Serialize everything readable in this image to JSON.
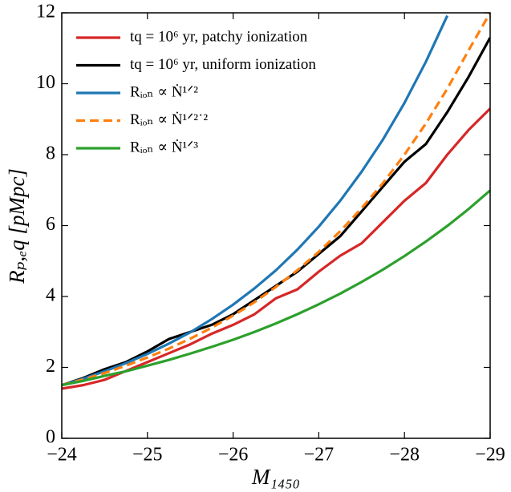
{
  "chart_data": {
    "type": "line",
    "x_label": "M₁₄₅₀",
    "y_label": "Rₚ,ₑq [pMpc]",
    "x": [
      -24,
      -24.25,
      -24.5,
      -24.75,
      -25,
      -25.25,
      -25.5,
      -25.75,
      -26,
      -26.25,
      -26.5,
      -26.75,
      -27,
      -27.25,
      -27.5,
      -27.75,
      -28,
      -28.25,
      -28.5,
      -28.75,
      -29
    ],
    "series": [
      {
        "name": "tq = 10⁶ yr, patchy ionization",
        "color": "#d62728",
        "dash": false,
        "values": [
          1.4,
          1.5,
          1.65,
          1.9,
          2.15,
          2.4,
          2.65,
          2.95,
          3.2,
          3.5,
          3.95,
          4.2,
          4.7,
          5.15,
          5.5,
          6.1,
          6.7,
          7.2,
          8.0,
          8.7,
          9.3
        ]
      },
      {
        "name": "tq = 10⁶ yr, uniform ionization",
        "color": "#000000",
        "dash": false,
        "values": [
          1.5,
          1.7,
          1.95,
          2.15,
          2.45,
          2.8,
          3.0,
          3.2,
          3.5,
          3.9,
          4.3,
          4.7,
          5.2,
          5.7,
          6.4,
          7.1,
          7.8,
          8.3,
          9.2,
          10.2,
          11.3
        ]
      },
      {
        "name": "Rᵢₒₙ ∝ Ṅ¹ᐟ²",
        "color": "#1f77b4",
        "dash": false,
        "values": [
          1.5,
          1.68,
          1.89,
          2.12,
          2.38,
          2.67,
          2.99,
          3.36,
          3.77,
          4.23,
          4.74,
          5.32,
          5.97,
          6.7,
          7.52,
          8.43,
          9.46,
          10.62,
          11.92,
          null,
          null
        ]
      },
      {
        "name": "Rᵢₒₙ ∝ Ṅ¹ᐟ²˙²",
        "color": "#ff7f0e",
        "dash": true,
        "values": [
          1.5,
          1.66,
          1.84,
          2.05,
          2.28,
          2.53,
          2.81,
          3.12,
          3.46,
          3.84,
          4.27,
          4.74,
          5.26,
          5.84,
          6.49,
          7.2,
          8.0,
          8.88,
          9.86,
          10.95,
          12.0
        ]
      },
      {
        "name": "Rᵢₒₙ ∝ Ṅ¹ᐟ³",
        "color": "#2ca02c",
        "dash": false,
        "values": [
          1.5,
          1.62,
          1.76,
          1.89,
          2.05,
          2.21,
          2.39,
          2.58,
          2.78,
          3.0,
          3.24,
          3.5,
          3.78,
          4.08,
          4.41,
          4.76,
          5.14,
          5.55,
          5.99,
          6.47,
          6.99
        ]
      }
    ],
    "xlim": [
      -24,
      -29
    ],
    "ylim": [
      0,
      12
    ],
    "xticks": [
      {
        "value": -24,
        "label": "−24"
      },
      {
        "value": -25,
        "label": "−25"
      },
      {
        "value": -26,
        "label": "−26"
      },
      {
        "value": -27,
        "label": "−27"
      },
      {
        "value": -28,
        "label": "−28"
      },
      {
        "value": -29,
        "label": "−29"
      }
    ],
    "yticks": [
      0,
      2,
      4,
      6,
      8,
      10,
      12
    ],
    "legend": "upper left",
    "grid": false
  }
}
